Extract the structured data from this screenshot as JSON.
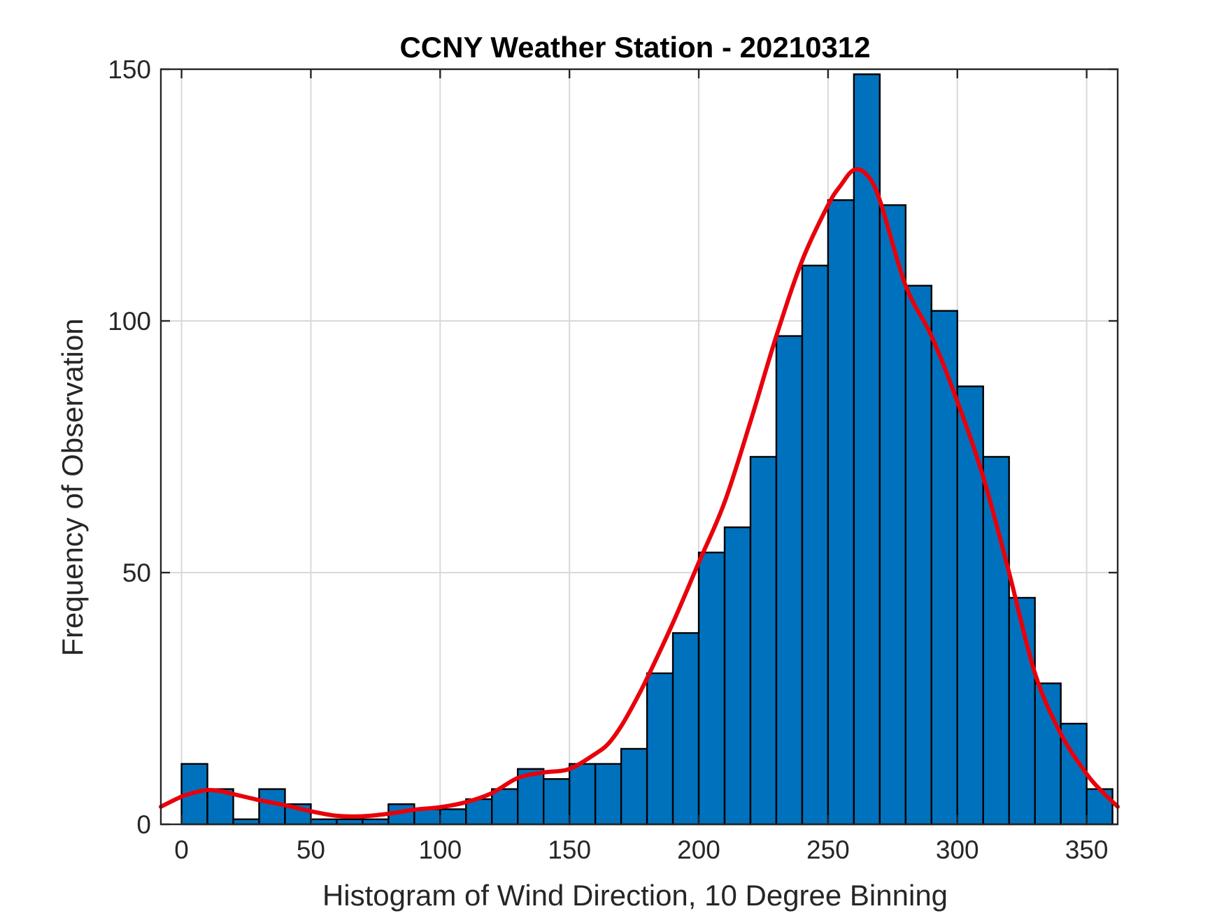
{
  "chart_data": {
    "type": "bar",
    "title": "CCNY Weather Station - 20210312",
    "xlabel": "Histogram of Wind Direction, 10 Degree Binning",
    "ylabel": "Frequency of Observation",
    "xlim": [
      -8,
      362
    ],
    "ylim": [
      0,
      150
    ],
    "xticks": [
      0,
      50,
      100,
      150,
      200,
      250,
      300,
      350
    ],
    "yticks": [
      0,
      50,
      100,
      150
    ],
    "grid": true,
    "bin_width": 10,
    "bin_edges_start": 0,
    "series": [
      {
        "type": "bar",
        "values": [
          12,
          7,
          1,
          7,
          4,
          1,
          1,
          1,
          4,
          3,
          3,
          5,
          7,
          11,
          9,
          12,
          12,
          15,
          30,
          38,
          54,
          59,
          73,
          97,
          111,
          124,
          149,
          123,
          107,
          102,
          87,
          73,
          45,
          28,
          20,
          7
        ]
      },
      {
        "type": "line",
        "x": [
          -8,
          0,
          5,
          10,
          15,
          20,
          25,
          30,
          35,
          40,
          50,
          60,
          70,
          80,
          90,
          100,
          110,
          120,
          130,
          140,
          150,
          160,
          165,
          170,
          175,
          180,
          190,
          200,
          210,
          220,
          230,
          240,
          250,
          255,
          260,
          265,
          270,
          280,
          290,
          300,
          310,
          320,
          330,
          340,
          350,
          356,
          362
        ],
        "values": [
          3.5,
          5.5,
          6.3,
          6.8,
          6.6,
          6,
          5.4,
          4.8,
          4.3,
          3.8,
          2.6,
          1.7,
          1.6,
          2.1,
          2.9,
          3.4,
          4.4,
          6.2,
          9.2,
          10.3,
          11,
          14,
          16,
          19.5,
          24,
          29,
          40,
          52,
          64,
          80,
          97,
          112,
          123,
          127,
          130,
          129,
          124,
          107,
          97,
          84,
          69,
          50,
          30,
          18,
          10,
          6.5,
          3.5
        ]
      }
    ]
  },
  "colors": {
    "bar_fill": "#0072bd",
    "curve": "#e8000b"
  }
}
